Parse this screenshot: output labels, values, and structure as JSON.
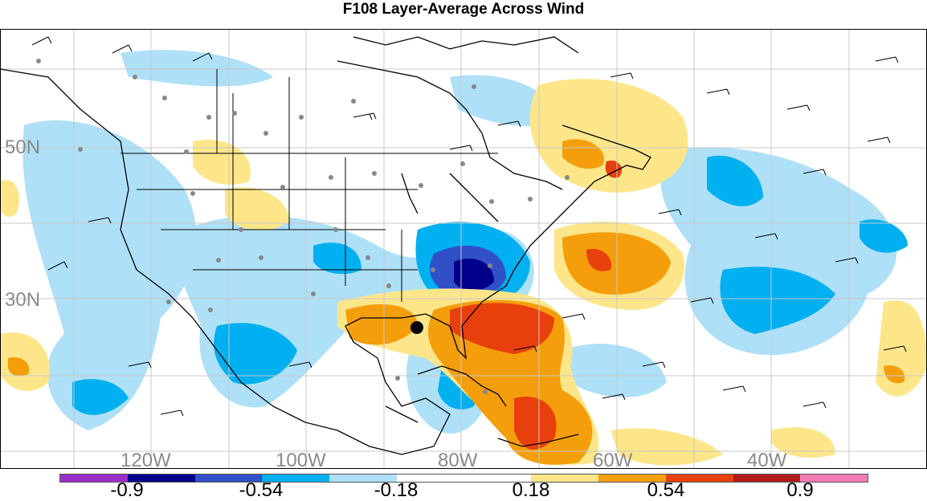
{
  "title": "F108 Layer-Average Across Wind",
  "map": {
    "lat_labels": [
      "50N",
      "30N"
    ],
    "lon_labels": [
      "120W",
      "100W",
      "80W",
      "60W",
      "40W"
    ],
    "storm_marker": "black-dot"
  },
  "colorbar": {
    "colors": [
      "#9b30c8",
      "#00008b",
      "#3050c8",
      "#00b0f0",
      "#aee0f7",
      "#ffffff",
      "#ffffff",
      "#fde68a",
      "#f59e0b",
      "#e8400c",
      "#b01c1c",
      "#f07cb4"
    ],
    "tick_labels": [
      "-0.9",
      "-0.54",
      "-0.18",
      "0.18",
      "0.54",
      "0.9"
    ]
  }
}
